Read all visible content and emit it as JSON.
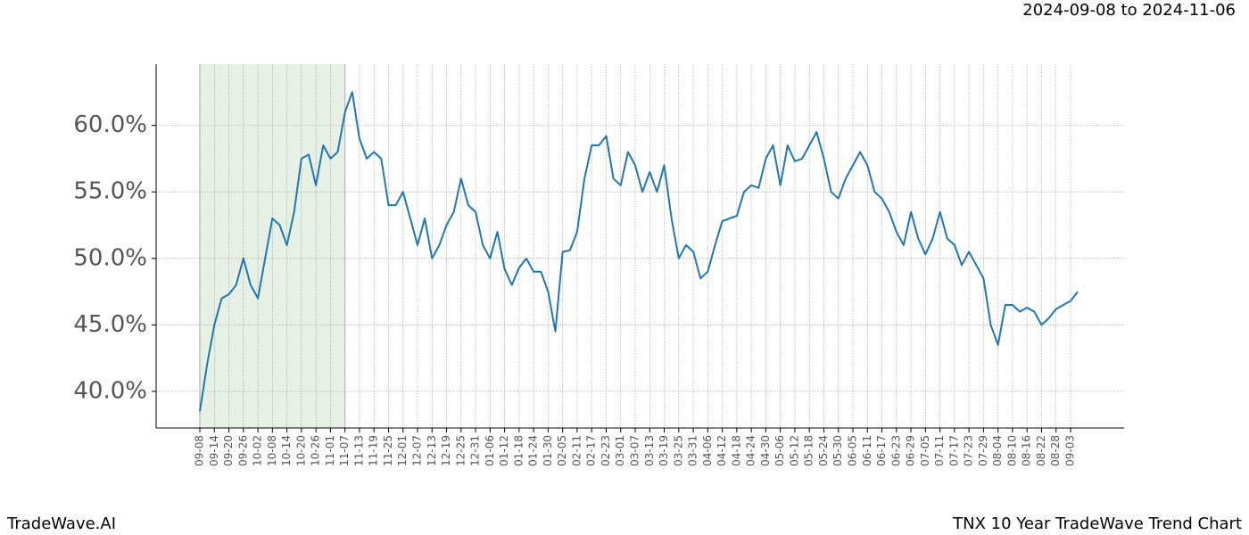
{
  "chart_data": {
    "type": "line",
    "title": "TNX 10 Year TradeWave Trend Chart",
    "subtitle": "2024-09-08 to 2024-11-06",
    "brand": "TradeWave.AI",
    "categories": [
      "09-08",
      null,
      "09-14",
      null,
      "09-20",
      null,
      "09-26",
      null,
      "10-02",
      null,
      "10-08",
      null,
      "10-14",
      null,
      "10-20",
      null,
      "10-26",
      null,
      "11-01",
      null,
      "11-07",
      null,
      "11-13",
      null,
      "11-19",
      null,
      "11-25",
      null,
      "12-01",
      null,
      "12-07",
      null,
      "12-13",
      null,
      "12-19",
      null,
      "12-25",
      null,
      "12-31",
      null,
      "01-06",
      null,
      "01-12",
      null,
      "01-18",
      null,
      "01-24",
      null,
      "01-30",
      null,
      "02-05",
      null,
      "02-11",
      null,
      "02-17",
      null,
      "02-23",
      null,
      "03-01",
      null,
      "03-07",
      null,
      "03-13",
      null,
      "03-19",
      null,
      "03-25",
      null,
      "03-31",
      null,
      "04-06",
      null,
      "04-12",
      null,
      "04-18",
      null,
      "04-24",
      null,
      "04-30",
      null,
      "05-06",
      null,
      "05-12",
      null,
      "05-18",
      null,
      "05-24",
      null,
      "05-30",
      null,
      "06-05",
      null,
      "06-11",
      null,
      "06-17",
      null,
      "06-23",
      null,
      "06-29",
      null,
      "07-05",
      null,
      "07-11",
      null,
      "07-17",
      null,
      "07-23",
      null,
      "07-29",
      null,
      "08-04",
      null,
      "08-10",
      null,
      "08-16",
      null,
      "08-22",
      null,
      "08-28",
      null,
      "09-03",
      null
    ],
    "series": [
      {
        "color": "#1f77b4",
        "values": [
          38.5,
          42,
          45,
          47,
          47.3,
          48,
          50,
          48,
          47,
          50,
          53,
          52.5,
          51,
          53.5,
          57.5,
          57.8,
          55.5,
          58.5,
          57.5,
          58,
          61,
          62.5,
          59,
          57.5,
          58,
          57.5,
          54,
          54,
          55,
          53,
          51,
          53,
          50,
          51,
          52.5,
          53.5,
          56,
          54,
          53.5,
          51,
          50,
          52,
          49.2,
          48,
          49.3,
          50,
          49,
          49,
          47.5,
          44.5,
          50.5,
          50.6,
          52,
          56,
          58.5,
          58.5,
          59.2,
          56,
          55.5,
          58,
          57,
          55,
          56.5,
          55,
          57,
          53,
          50,
          51,
          50.5,
          48.5,
          49,
          51,
          52.8,
          53,
          53.2,
          55,
          55.5,
          55.3,
          57.5,
          58.5,
          55.5,
          58.5,
          57.3,
          57.5,
          58.5,
          59.5,
          57.5,
          55,
          54.5,
          56,
          57,
          58,
          57,
          55,
          54.5,
          53.5,
          52,
          51,
          53.5,
          51.5,
          50.3,
          51.5,
          53.5,
          51.5,
          51,
          49.5,
          50.5,
          49.5,
          48.5,
          45,
          43.5,
          46.5,
          46.5,
          46,
          46.3,
          46,
          45,
          45.5,
          46.2,
          46.5,
          46.8,
          47.5
        ]
      }
    ],
    "shade": {
      "from": "09-08",
      "to": "11-07",
      "color": "#e6f0e4"
    },
    "ylim": [
      37.25,
      64.6
    ],
    "yticks": [
      {
        "value": 40,
        "label": "40.0%"
      },
      {
        "value": 45,
        "label": "45.0%"
      },
      {
        "value": 50,
        "label": "50.0%"
      },
      {
        "value": 55,
        "label": "55.0%"
      },
      {
        "value": 60,
        "label": "60.0%"
      }
    ],
    "grid": true
  }
}
